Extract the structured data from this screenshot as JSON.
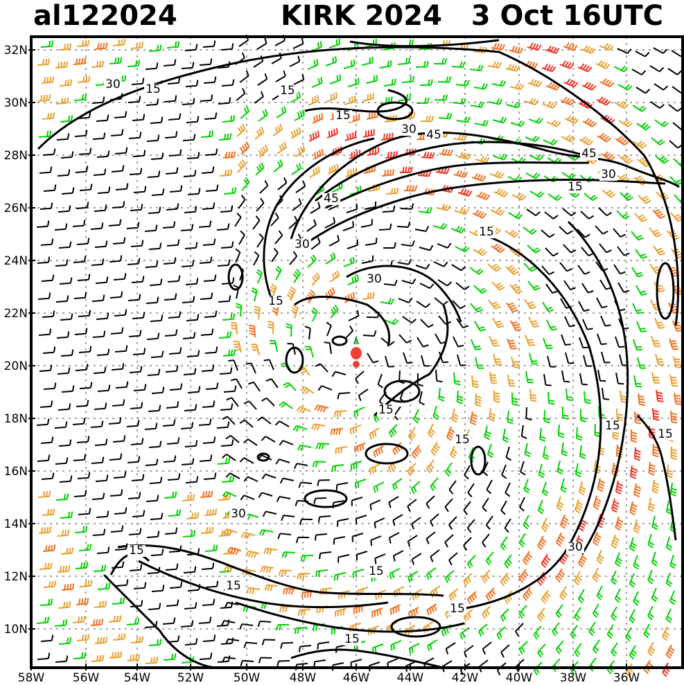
{
  "header": {
    "storm_id": "al122024",
    "storm_title": "KIRK 2024   3 Oct 16UTC"
  },
  "axes": {
    "lat_labels": [
      "32N",
      "30N",
      "28N",
      "26N",
      "24N",
      "22N",
      "20N",
      "18N",
      "16N",
      "14N",
      "12N",
      "10N"
    ],
    "lon_labels": [
      "58W",
      "56W",
      "54W",
      "52W",
      "50W",
      "48W",
      "46W",
      "44W",
      "42W",
      "40W",
      "38W",
      "36W"
    ]
  },
  "contour_labels": [
    "30",
    "15",
    "15",
    "15",
    "30",
    "45",
    "45",
    "30",
    "15",
    "45",
    "30",
    "15",
    "15",
    "30",
    "15",
    "15",
    "15",
    "15",
    "30",
    "15",
    "15",
    "15",
    "15",
    "30",
    "15"
  ],
  "center_icon": "storm-center-marker",
  "colors": {
    "light_wind": "#000000",
    "moderate_wind": "#00d000",
    "strong_wind": "#e8a030",
    "very_strong_wind": "#f07020",
    "extreme_wind": "#f03020",
    "storm_center": "#f04030",
    "grid": "#a0a0a0"
  }
}
